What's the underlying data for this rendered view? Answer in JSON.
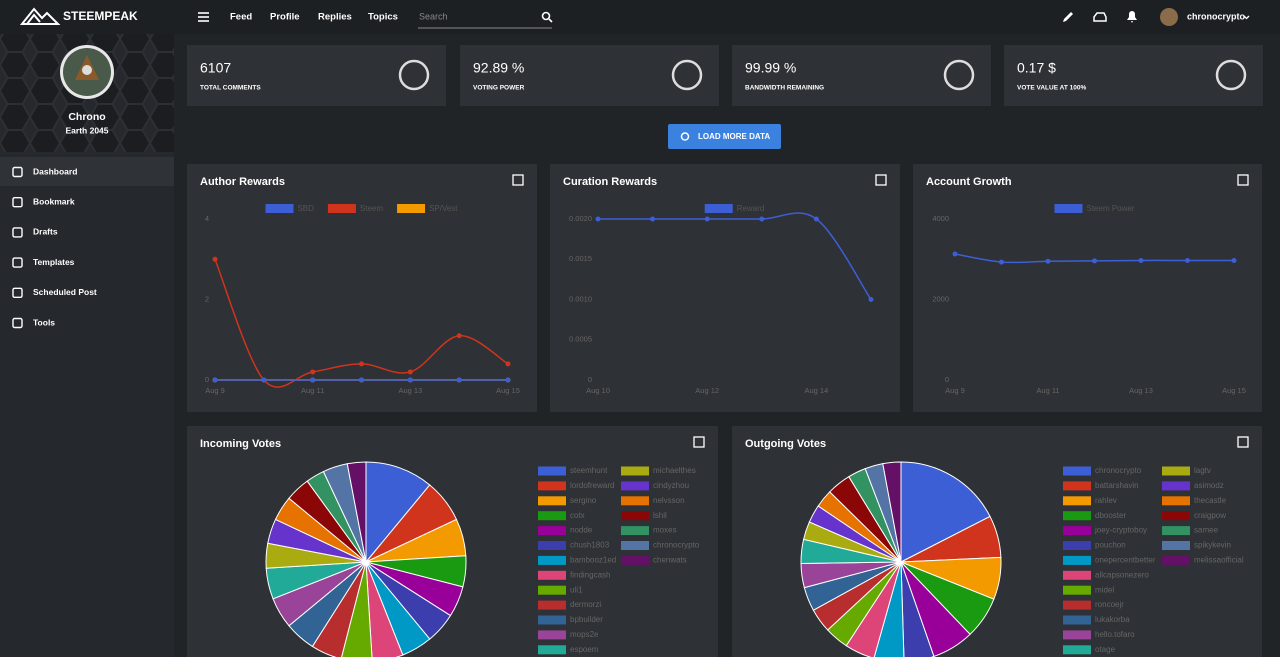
{
  "header": {
    "logo": "STEEMPEAK",
    "nav": [
      "Feed",
      "Profile",
      "Replies",
      "Topics"
    ],
    "search": "Search",
    "user": "chronocrypto"
  },
  "profile": {
    "name": "Chrono",
    "location": "Earth 2045"
  },
  "menu": [
    "Dashboard",
    "Bookmark",
    "Drafts",
    "Templates",
    "Scheduled Post",
    "Tools"
  ],
  "stats": [
    {
      "value": "6107",
      "label": "TOTAL COMMENTS"
    },
    {
      "value": "92.89 %",
      "label": "VOTING POWER"
    },
    {
      "value": "99.99 %",
      "label": "BANDWIDTH REMAINING"
    },
    {
      "value": "0.17 $",
      "label": "VOTE VALUE AT 100%"
    }
  ],
  "button": "LOAD MORE DATA",
  "chart_data": [
    {
      "type": "line",
      "title": "Author Rewards",
      "categories": [
        "Aug 9",
        null,
        "Aug 11",
        null,
        "Aug 13",
        null,
        "Aug 15"
      ],
      "series": [
        {
          "name": "SBD",
          "color": "#3d5fd6",
          "values": [
            0,
            0,
            0,
            0,
            0,
            0,
            0
          ]
        },
        {
          "name": "Steem",
          "color": "#d0341c",
          "values": [
            3.0,
            0,
            0.2,
            0.4,
            0.2,
            1.1,
            0.4
          ]
        },
        {
          "name": "SP/Vest",
          "color": "#f39a00",
          "values": [
            0,
            0,
            0,
            0,
            0,
            0,
            0
          ]
        }
      ],
      "ylim": [
        0,
        4
      ],
      "yticks": [
        0,
        2,
        4
      ]
    },
    {
      "type": "line",
      "title": "Curation Rewards",
      "categories": [
        "Aug 10",
        null,
        "Aug 12",
        null,
        "Aug 14",
        null
      ],
      "series": [
        {
          "name": "Reward",
          "color": "#3d5fd6",
          "values": [
            0.002,
            0.002,
            0.002,
            0.002,
            0.002,
            0.001
          ]
        }
      ],
      "ylim": [
        0,
        0.002
      ],
      "yticks": [
        0,
        0.0005,
        {
          "value": 0.001,
          "label": "0.0010"
        },
        0.0015,
        {
          "value": 0.002,
          "label": "0.0020"
        }
      ]
    },
    {
      "type": "line",
      "title": "Account Growth",
      "categories": [
        "Aug 9",
        null,
        "Aug 11",
        null,
        "Aug 13",
        null,
        "Aug 15"
      ],
      "series": [
        {
          "name": "Steem Power",
          "color": "#3d5fd6",
          "values": [
            3130,
            2930,
            2950,
            2960,
            2970,
            2970,
            2970
          ]
        }
      ],
      "ylim": [
        0,
        4000
      ],
      "yticks": [
        0,
        2000,
        4000
      ]
    },
    {
      "type": "pie",
      "title": "Incoming Votes",
      "categories": [
        "steemhunt",
        "lordofreward",
        "sergino",
        "cotx",
        "nodde",
        "chush1803",
        "bambooz1ed",
        "findingcash",
        "uli1",
        "dermorzi",
        "bpbuilder",
        "mops2e",
        "espoem",
        "michaelthes",
        "cindyzhou",
        "nelvsson",
        "lshil",
        "moxes",
        "chronocrypto",
        "chenwats"
      ],
      "colors": [
        "#3d5fd6",
        "#d0341c",
        "#f39a00",
        "#1a9a10",
        "#990099",
        "#3b3eac",
        "#0099c6",
        "#dd4477",
        "#66aa00",
        "#b82e2e",
        "#316395",
        "#994499",
        "#22aa99",
        "#aaaa11",
        "#6633cc",
        "#e67300",
        "#8b0707",
        "#329262",
        "#5574a6",
        "#651067"
      ],
      "values": [
        11,
        7,
        6,
        5,
        5,
        5,
        5,
        5,
        5,
        5,
        5,
        5,
        5,
        4,
        4,
        4,
        4,
        3,
        4,
        3
      ]
    },
    {
      "type": "pie",
      "title": "Outgoing Votes",
      "categories": [
        "chronocrypto",
        "battarshavin",
        "rahlev",
        "dbooster",
        "joey-cryptoboy",
        "pouchon",
        "onepercentbetter",
        "allcapsonezero",
        "midel",
        "roncoejr",
        "lukakorba",
        "hello.tofaro",
        "otage",
        "lagtv",
        "asimodz",
        "thecastle",
        "craigpow",
        "samee",
        "spikykevin",
        "melissaofficial"
      ],
      "colors": [
        "#3d5fd6",
        "#d0341c",
        "#f39a00",
        "#1a9a10",
        "#990099",
        "#3b3eac",
        "#0099c6",
        "#dd4477",
        "#66aa00",
        "#b82e2e",
        "#316395",
        "#994499",
        "#22aa99",
        "#aaaa11",
        "#6633cc",
        "#e67300",
        "#8b0707",
        "#329262",
        "#5574a6",
        "#651067"
      ],
      "values": [
        18,
        7,
        7,
        7,
        7,
        5,
        5,
        5,
        4,
        4,
        4,
        4,
        4,
        3,
        3,
        3,
        4,
        3,
        3,
        3
      ]
    }
  ]
}
